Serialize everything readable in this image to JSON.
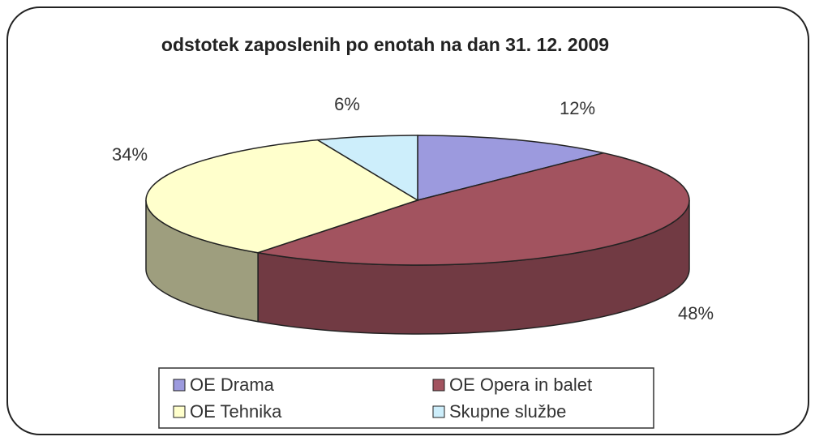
{
  "chart_data": {
    "type": "pie3d",
    "title": "odstotek zaposlenih po enotah na dan 31. 12. 2009",
    "categories": [
      "OE Drama",
      "OE Opera in balet",
      "OE Tehnika",
      "Skupne službe"
    ],
    "values": [
      12,
      48,
      34,
      6
    ],
    "value_labels": [
      "12%",
      "48%",
      "34%",
      "6%"
    ],
    "colors": [
      "#9c9ade",
      "#a2535f",
      "#ffffcc",
      "#cdeefb"
    ],
    "legend": "bottom"
  }
}
